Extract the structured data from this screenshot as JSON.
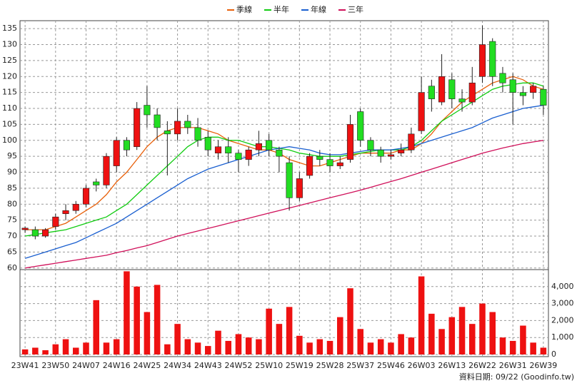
{
  "chart_data": {
    "type": "candlestick",
    "categories": [
      "23W41",
      null,
      null,
      "23W50",
      null,
      null,
      "24W07",
      null,
      null,
      "24W16",
      null,
      null,
      "24W25",
      null,
      null,
      "24W34",
      null,
      null,
      "24W43",
      null,
      null,
      "24W52",
      null,
      null,
      "25W10",
      null,
      null,
      "25W19",
      null,
      null,
      "25W28",
      null,
      null,
      "25W37",
      null,
      null,
      "25W46",
      null,
      null,
      "26W03",
      null,
      null,
      "26W13",
      null,
      null,
      "26W22",
      null,
      null,
      "26W31",
      null,
      null,
      "26W39"
    ],
    "open": [
      72,
      72,
      70,
      73,
      77,
      78,
      80,
      87,
      86,
      92,
      100,
      98,
      111,
      108,
      103,
      102,
      106,
      104,
      101,
      96,
      98,
      96,
      94,
      97,
      100,
      97,
      93,
      82,
      89,
      95,
      94,
      92,
      94,
      109,
      100,
      97,
      95,
      96,
      97,
      103,
      117,
      112,
      119,
      113,
      112,
      120,
      131,
      121,
      119,
      115,
      115,
      116
    ],
    "high": [
      73,
      73,
      72.5,
      77,
      80,
      81,
      86,
      88,
      96,
      101,
      101,
      112,
      117,
      110,
      106,
      110,
      108,
      107,
      103,
      100,
      101,
      97,
      98,
      103,
      102,
      98,
      95,
      90,
      96,
      97,
      96,
      95,
      108,
      110,
      101,
      98,
      97,
      99,
      104,
      120,
      119,
      127,
      121,
      116,
      123,
      136,
      132,
      123,
      121,
      117,
      118,
      117
    ],
    "low": [
      71,
      69,
      69.5,
      72,
      75,
      77,
      79,
      84,
      85,
      90,
      95,
      97,
      104,
      100,
      89,
      100,
      102,
      98,
      95,
      94,
      93,
      90,
      92,
      95,
      95,
      90,
      78,
      81,
      88,
      92,
      90,
      91,
      93,
      98,
      95,
      93,
      94,
      95,
      96,
      102,
      109,
      111,
      110,
      109,
      111,
      118,
      117,
      115,
      105,
      111,
      113,
      108
    ],
    "close": [
      72.5,
      70,
      72,
      76,
      78,
      80,
      85,
      86,
      95,
      100,
      97,
      110,
      108,
      104,
      102,
      106,
      104,
      100,
      97,
      98,
      96,
      94,
      97,
      99,
      97,
      95,
      82,
      88,
      95,
      94,
      92,
      93,
      105,
      100,
      97,
      95,
      95.5,
      97,
      102,
      115,
      113,
      120,
      113,
      112,
      118,
      130,
      120,
      118,
      115,
      114,
      117,
      111
    ],
    "up_color": "#ee1111",
    "down_color": "#22dd22",
    "series": [
      {
        "name": "季線",
        "color": "#e8600a",
        "values": [
          72,
          72,
          72,
          73,
          74,
          76,
          78,
          80,
          83,
          87,
          90,
          94,
          98,
          101,
          103,
          104,
          104,
          104,
          103,
          102,
          100,
          99,
          98,
          97,
          97,
          96,
          94,
          93,
          92,
          92,
          93,
          94,
          95,
          96,
          96,
          96,
          96,
          97,
          97,
          99,
          102,
          106,
          109,
          112,
          114,
          116,
          118,
          119,
          120,
          119,
          117,
          116
        ]
      },
      {
        "name": "半年",
        "color": "#11cc11",
        "values": [
          70,
          70.5,
          71,
          71.5,
          72,
          73,
          74,
          75,
          76,
          78,
          80,
          83,
          86,
          89,
          92,
          95,
          98,
          100,
          101,
          101,
          100,
          100,
          99,
          98,
          98,
          97.5,
          97,
          96,
          95.5,
          95,
          95,
          95,
          95.5,
          96,
          96.5,
          97,
          97,
          97,
          98,
          100,
          103,
          106,
          108,
          110,
          112,
          114,
          116,
          117,
          117.5,
          118,
          118,
          117
        ]
      },
      {
        "name": "年線",
        "color": "#1a5fd0",
        "values": [
          63,
          64,
          65,
          66,
          67,
          68,
          69.5,
          71,
          72.5,
          74,
          76,
          78,
          80,
          82,
          84,
          86,
          88,
          89.5,
          91,
          92,
          93,
          94,
          95,
          96,
          97,
          97.5,
          98,
          97.5,
          97,
          96,
          95.5,
          95.5,
          96,
          96.5,
          97,
          97,
          97,
          97.5,
          98,
          99,
          100,
          101,
          102,
          103,
          104,
          105.5,
          107,
          108,
          109,
          110,
          110.5,
          111
        ]
      },
      {
        "name": "三年",
        "color": "#d0105a",
        "values": [
          60,
          60.5,
          61,
          61.5,
          62,
          62.5,
          63,
          63.5,
          64,
          64.8,
          65.5,
          66.3,
          67,
          68,
          69,
          70,
          70.8,
          71.6,
          72.4,
          73.2,
          74,
          74.8,
          75.6,
          76.4,
          77.2,
          78,
          78.8,
          79.6,
          80.4,
          81.2,
          82,
          82.8,
          83.6,
          84.4,
          85.3,
          86.2,
          87.1,
          88,
          89,
          90,
          91,
          92,
          93,
          94,
          95,
          96,
          96.8,
          97.6,
          98.3,
          99,
          99.5,
          100
        ]
      }
    ],
    "ylim": [
      59.5,
      137.5
    ],
    "yticks": [
      60,
      65,
      70,
      75,
      80,
      85,
      90,
      95,
      100,
      105,
      110,
      115,
      120,
      125,
      130,
      135
    ],
    "grid": true,
    "volume": {
      "color": "#ee1111",
      "values": [
        300,
        400,
        250,
        600,
        900,
        400,
        700,
        3200,
        700,
        900,
        4900,
        4000,
        2500,
        4100,
        600,
        1800,
        900,
        700,
        500,
        1400,
        800,
        1200,
        1000,
        900,
        2700,
        1800,
        2800,
        1100,
        700,
        900,
        800,
        2200,
        3900,
        1500,
        700,
        900,
        700,
        1200,
        1000,
        4600,
        2400,
        1500,
        2200,
        2800,
        1800,
        3000,
        2500,
        1000,
        800,
        1700,
        700,
        400
      ],
      "ylim": [
        0,
        5000
      ],
      "yticks": [
        0,
        {
          "value": 1000,
          "label": "1,000"
        },
        {
          "value": 2000,
          "label": "2,000"
        },
        {
          "value": 3000,
          "label": "3,000"
        },
        {
          "value": 4000,
          "label": "4,000"
        }
      ]
    },
    "source": "資料日期: 09/22 (Goodinfo.tw)"
  }
}
